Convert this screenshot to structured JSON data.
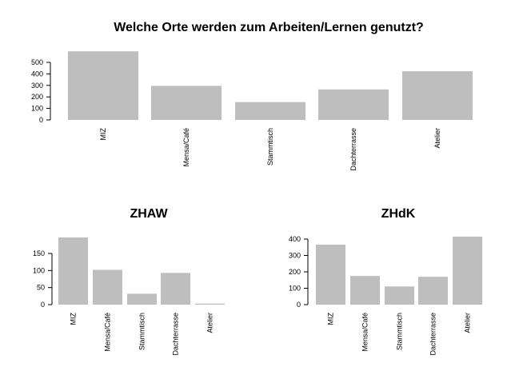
{
  "chart_data": [
    {
      "type": "bar",
      "title": "Welche Orte werden zum Arbeiten/Lernen genutzt?",
      "categories": [
        "MIZ",
        "Mensa/Café",
        "Stammtisch",
        "Dachterrasse",
        "Atelier"
      ],
      "values": [
        596,
        296,
        155,
        265,
        423
      ],
      "yticks": [
        0,
        100,
        200,
        300,
        400,
        500
      ],
      "ylim": [
        0,
        600
      ],
      "color": "#BEBEBE",
      "xlabel": "",
      "ylabel": ""
    },
    {
      "type": "bar",
      "title": "ZHAW",
      "categories": [
        "MIZ",
        "Mensa/Café",
        "Stammtisch",
        "Dachterrasse",
        "Atelier"
      ],
      "values": [
        197,
        102,
        32,
        93,
        3
      ],
      "yticks": [
        0,
        50,
        100,
        150
      ],
      "ylim": [
        0,
        200
      ],
      "color": "#BEBEBE",
      "xlabel": "",
      "ylabel": ""
    },
    {
      "type": "bar",
      "title": "ZHdK",
      "categories": [
        "MIZ",
        "Mensa/Café",
        "Stammtisch",
        "Dachterrasse",
        "Atelier"
      ],
      "values": [
        366,
        175,
        111,
        170,
        415
      ],
      "yticks": [
        0,
        100,
        200,
        300,
        400
      ],
      "ylim": [
        0,
        420
      ],
      "color": "#BEBEBE",
      "xlabel": "",
      "ylabel": ""
    }
  ]
}
